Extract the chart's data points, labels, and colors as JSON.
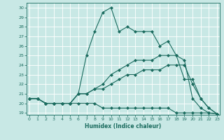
{
  "xlabel": "Humidex (Indice chaleur)",
  "background_color": "#c8e8e5",
  "grid_color": "#ffffff",
  "line_color": "#1a6b5e",
  "xlim": [
    -0.3,
    23.3
  ],
  "ylim": [
    18.8,
    30.5
  ],
  "yticks": [
    19,
    20,
    21,
    22,
    23,
    24,
    25,
    26,
    27,
    28,
    29,
    30
  ],
  "xticks": [
    0,
    1,
    2,
    3,
    4,
    5,
    6,
    7,
    8,
    9,
    10,
    11,
    12,
    13,
    14,
    15,
    16,
    17,
    18,
    19,
    20,
    21,
    22,
    23
  ],
  "series": [
    {
      "x": [
        0,
        1,
        2,
        3,
        4,
        5,
        6,
        7,
        8,
        9,
        10,
        11,
        12,
        13,
        14,
        15,
        16,
        17,
        18,
        19,
        20,
        21,
        22,
        23
      ],
      "y": [
        20.5,
        20.5,
        20.0,
        20.0,
        20.0,
        20.0,
        21.0,
        25.0,
        27.5,
        29.5,
        30.0,
        27.5,
        28.0,
        27.5,
        27.5,
        27.5,
        26.0,
        26.5,
        25.0,
        24.5,
        20.5,
        19.5,
        19.0,
        18.9
      ]
    },
    {
      "x": [
        0,
        1,
        2,
        3,
        4,
        5,
        6,
        7,
        8,
        9,
        10,
        11,
        12,
        13,
        14,
        15,
        16,
        17,
        18,
        19,
        20,
        21,
        22,
        23
      ],
      "y": [
        20.5,
        20.5,
        20.0,
        20.0,
        20.0,
        20.0,
        21.0,
        21.0,
        21.5,
        22.0,
        23.0,
        23.5,
        24.0,
        24.5,
        24.5,
        24.5,
        25.0,
        25.0,
        25.0,
        22.5,
        22.5,
        20.5,
        19.5,
        18.9
      ]
    },
    {
      "x": [
        0,
        1,
        2,
        3,
        4,
        5,
        6,
        7,
        8,
        9,
        10,
        11,
        12,
        13,
        14,
        15,
        16,
        17,
        18,
        19,
        20,
        21,
        22,
        23
      ],
      "y": [
        20.5,
        20.5,
        20.0,
        20.0,
        20.0,
        20.0,
        21.0,
        21.0,
        21.5,
        21.5,
        22.0,
        22.5,
        23.0,
        23.0,
        23.5,
        23.5,
        23.5,
        24.0,
        24.0,
        24.0,
        22.0,
        20.5,
        19.5,
        18.9
      ]
    },
    {
      "x": [
        0,
        1,
        2,
        3,
        4,
        5,
        6,
        7,
        8,
        9,
        10,
        11,
        12,
        13,
        14,
        15,
        16,
        17,
        18,
        19,
        20,
        21,
        22,
        23
      ],
      "y": [
        20.5,
        20.5,
        20.0,
        20.0,
        20.0,
        20.0,
        20.0,
        20.0,
        20.0,
        19.5,
        19.5,
        19.5,
        19.5,
        19.5,
        19.5,
        19.5,
        19.5,
        19.5,
        19.0,
        19.0,
        19.0,
        19.0,
        19.0,
        18.9
      ]
    }
  ]
}
